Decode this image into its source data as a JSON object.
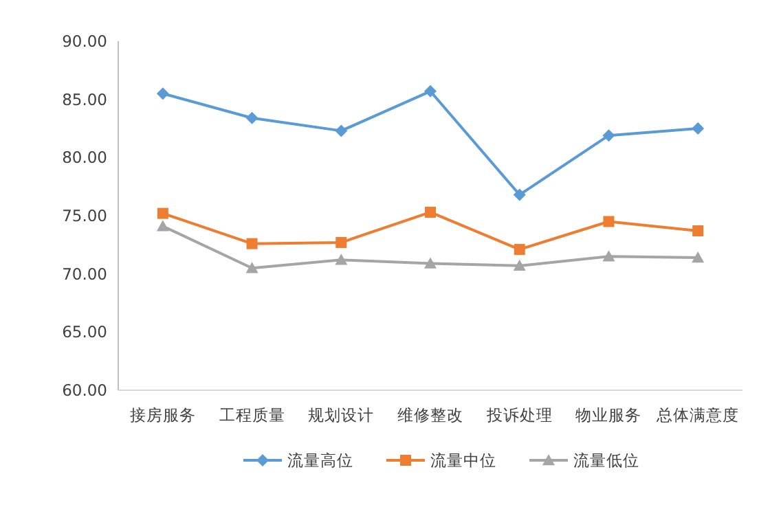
{
  "chart_data": {
    "type": "line",
    "categories": [
      "接房服务",
      "工程质量",
      "规划设计",
      "维修整改",
      "投诉处理",
      "物业服务",
      "总体满意度"
    ],
    "series": [
      {
        "name": "流量高位",
        "color": "#5b9bd5",
        "marker": "diamond",
        "values": [
          85.5,
          83.4,
          82.3,
          85.7,
          76.8,
          81.9,
          82.5
        ]
      },
      {
        "name": "流量中位",
        "color": "#ed7d31",
        "marker": "square",
        "values": [
          75.2,
          72.6,
          72.7,
          75.3,
          72.1,
          74.5,
          73.7
        ]
      },
      {
        "name": "流量低位",
        "color": "#a5a5a5",
        "marker": "triangle",
        "values": [
          74.1,
          70.5,
          71.2,
          70.9,
          70.7,
          71.5,
          71.4
        ]
      }
    ],
    "ylim": [
      60,
      90
    ],
    "yticks": [
      {
        "value": 60,
        "label": "60.00"
      },
      {
        "value": 65,
        "label": "65.00"
      },
      {
        "value": 70,
        "label": "70.00"
      },
      {
        "value": 75,
        "label": "75.00"
      },
      {
        "value": 80,
        "label": "80.00"
      },
      {
        "value": 85,
        "label": "85.00"
      },
      {
        "value": 90,
        "label": "90.00"
      }
    ],
    "grid": false,
    "legend": "bottom"
  }
}
